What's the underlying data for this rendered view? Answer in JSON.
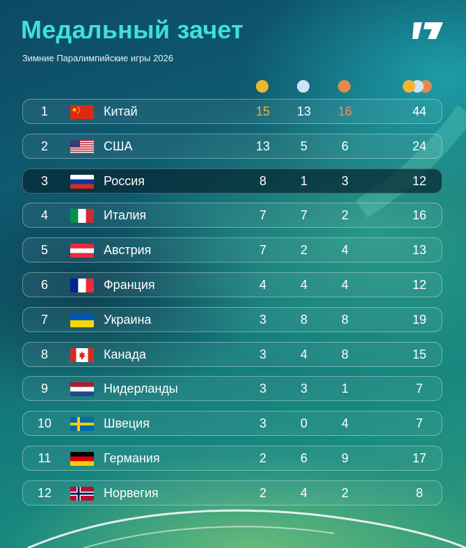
{
  "header": {
    "title": "Медальный зачет",
    "subtitle": "Зимние Паралимпийские игры 2026"
  },
  "colors": {
    "accent": "#3fe0d6",
    "gold": "#f2b532",
    "silver": "#cfe4f0",
    "bronze": "#e58a4e"
  },
  "columns": [
    "gold-medal-icon",
    "silver-medal-icon",
    "bronze-medal-icon",
    "total-medals-icon"
  ],
  "rows": [
    {
      "rank": "1",
      "country": "Китай",
      "flag": "china",
      "gold": "15",
      "silver": "13",
      "bronze": "16",
      "total": "44"
    },
    {
      "rank": "2",
      "country": "США",
      "flag": "usa",
      "gold": "13",
      "silver": "5",
      "bronze": "6",
      "total": "24"
    },
    {
      "rank": "3",
      "country": "Россия",
      "flag": "russia",
      "gold": "8",
      "silver": "1",
      "bronze": "3",
      "total": "12",
      "highlighted": true
    },
    {
      "rank": "4",
      "country": "Италия",
      "flag": "italy",
      "gold": "7",
      "silver": "7",
      "bronze": "2",
      "total": "16"
    },
    {
      "rank": "5",
      "country": "Австрия",
      "flag": "austria",
      "gold": "7",
      "silver": "2",
      "bronze": "4",
      "total": "13"
    },
    {
      "rank": "6",
      "country": "Франция",
      "flag": "france",
      "gold": "4",
      "silver": "4",
      "bronze": "4",
      "total": "12"
    },
    {
      "rank": "7",
      "country": "Украина",
      "flag": "ukraine",
      "gold": "3",
      "silver": "8",
      "bronze": "8",
      "total": "19"
    },
    {
      "rank": "8",
      "country": "Канада",
      "flag": "canada",
      "gold": "3",
      "silver": "4",
      "bronze": "8",
      "total": "15"
    },
    {
      "rank": "9",
      "country": "Нидерланды",
      "flag": "netherlands",
      "gold": "3",
      "silver": "3",
      "bronze": "1",
      "total": "7"
    },
    {
      "rank": "10",
      "country": "Швеция",
      "flag": "sweden",
      "gold": "3",
      "silver": "0",
      "bronze": "4",
      "total": "7"
    },
    {
      "rank": "11",
      "country": "Германия",
      "flag": "germany",
      "gold": "2",
      "silver": "6",
      "bronze": "9",
      "total": "17"
    },
    {
      "rank": "12",
      "country": "Норвегия",
      "flag": "norway",
      "gold": "2",
      "silver": "4",
      "bronze": "2",
      "total": "8"
    }
  ]
}
